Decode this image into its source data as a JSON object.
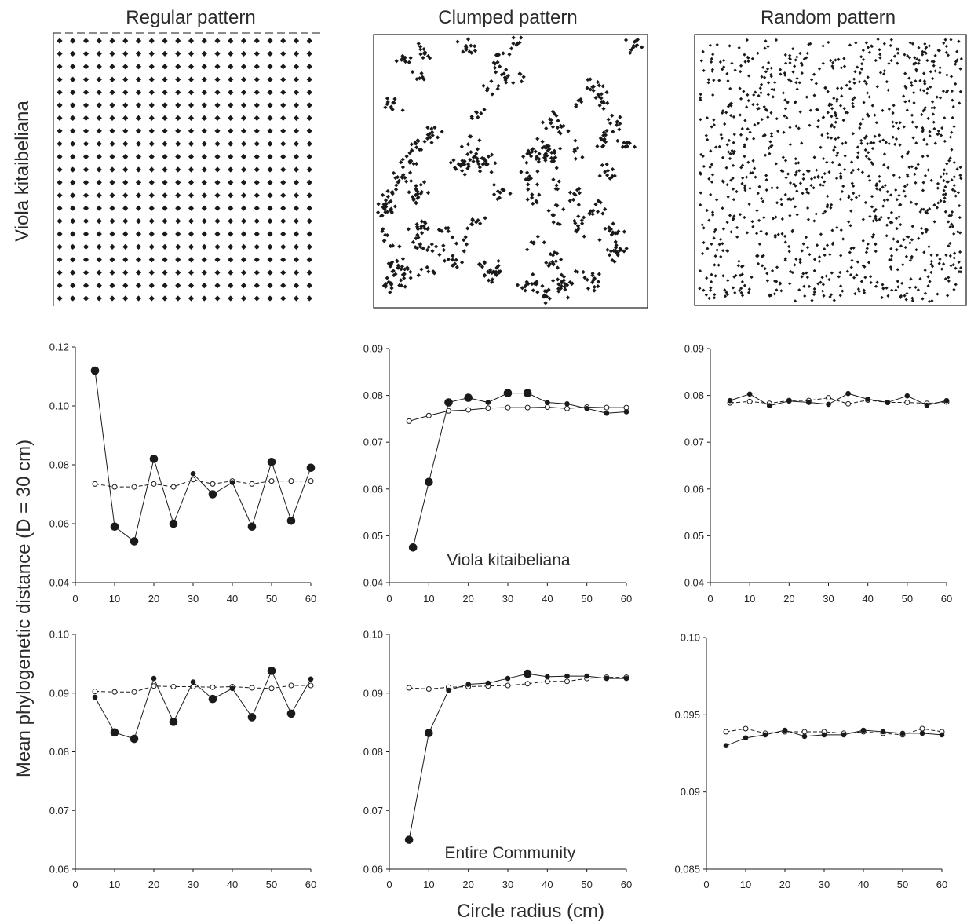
{
  "figure": {
    "col_titles": [
      "Regular pattern",
      "Clumped pattern",
      "Random pattern"
    ],
    "row_label_top": "Viola kitaibeliana",
    "ylabel": "Mean phylogenetic distance (D = 30 cm)",
    "xlabel": "Circle radius (cm)",
    "annotation_mid": "Viola kitaibeliana",
    "annotation_bottom": "Entire Community"
  },
  "style": {
    "line_color": "#1a1a1a",
    "observed_fill": "#1a1a1a",
    "null_fill": "#ffffff"
  },
  "chart_data": [
    {
      "id": "regular-viola",
      "type": "line",
      "xlabel": "Circle radius (cm)",
      "xlim": [
        0,
        60
      ],
      "ylim": [
        0.04,
        0.12
      ],
      "xticks": [
        0,
        10,
        20,
        30,
        40,
        50,
        60
      ],
      "yticks": [
        "0.04",
        "0.06",
        "0.08",
        "0.10",
        "0.12"
      ],
      "series": [
        {
          "marker": "filled",
          "x": [
            5,
            10,
            15,
            20,
            25,
            30,
            35,
            40,
            45,
            50,
            55,
            60
          ],
          "y": [
            0.112,
            0.059,
            0.054,
            0.082,
            0.06,
            0.077,
            0.07,
            0.074,
            0.059,
            0.081,
            0.061,
            0.079
          ],
          "sizes": [
            2,
            2,
            2,
            2,
            2,
            1,
            2,
            1,
            2,
            2,
            2,
            2
          ]
        },
        {
          "marker": "open",
          "line": "dashed",
          "x": [
            5,
            10,
            15,
            20,
            25,
            30,
            35,
            40,
            45,
            50,
            55,
            60
          ],
          "y": [
            0.0735,
            0.0725,
            0.0725,
            0.0735,
            0.0725,
            0.075,
            0.0735,
            0.0745,
            0.0735,
            0.0745,
            0.0745,
            0.0745
          ]
        }
      ]
    },
    {
      "id": "clumped-viola",
      "type": "line",
      "xlabel": "Circle radius (cm)",
      "xlim": [
        0,
        60
      ],
      "ylim": [
        0.04,
        0.09
      ],
      "xticks": [
        0,
        10,
        20,
        30,
        40,
        50,
        60
      ],
      "yticks": [
        "0.04",
        "0.05",
        "0.06",
        "0.07",
        "0.08",
        "0.09"
      ],
      "series": [
        {
          "marker": "filled",
          "x": [
            6,
            10,
            15,
            20,
            25,
            30,
            35,
            40,
            45,
            50,
            55,
            60
          ],
          "y": [
            0.0475,
            0.0615,
            0.0785,
            0.0795,
            0.0785,
            0.0805,
            0.0805,
            0.0785,
            0.0782,
            0.0772,
            0.0762,
            0.0765
          ],
          "sizes": [
            2,
            2,
            2,
            2,
            1,
            2,
            2,
            1,
            1,
            1,
            1,
            1
          ]
        },
        {
          "marker": "open",
          "x": [
            5,
            10,
            15,
            20,
            25,
            30,
            35,
            40,
            45,
            50,
            55,
            60
          ],
          "y": [
            0.0745,
            0.0757,
            0.0767,
            0.0769,
            0.0773,
            0.0774,
            0.0774,
            0.0775,
            0.0772,
            0.0775,
            0.0774,
            0.0774
          ]
        }
      ]
    },
    {
      "id": "random-viola",
      "type": "line",
      "xlabel": "Circle radius (cm)",
      "xlim": [
        0,
        60
      ],
      "ylim": [
        0.04,
        0.09
      ],
      "xticks": [
        0,
        10,
        20,
        30,
        40,
        50,
        60
      ],
      "yticks": [
        "0.04",
        "0.05",
        "0.06",
        "0.07",
        "0.08",
        "0.09"
      ],
      "series": [
        {
          "marker": "filled",
          "x": [
            5,
            10,
            15,
            20,
            25,
            30,
            35,
            40,
            45,
            50,
            55,
            60
          ],
          "y": [
            0.0789,
            0.0803,
            0.0778,
            0.0788,
            0.0785,
            0.0781,
            0.0804,
            0.0792,
            0.0785,
            0.0799,
            0.0779,
            0.0789
          ],
          "sizes": [
            1,
            1,
            1,
            1,
            1,
            1,
            1,
            1,
            1,
            1,
            1,
            1
          ]
        },
        {
          "marker": "open",
          "line": "dashed",
          "x": [
            5,
            10,
            15,
            20,
            25,
            30,
            35,
            40,
            45,
            50,
            55,
            60
          ],
          "y": [
            0.0784,
            0.0787,
            0.0783,
            0.0789,
            0.0789,
            0.0795,
            0.0782,
            0.079,
            0.0785,
            0.0785,
            0.0783,
            0.0786
          ]
        }
      ]
    },
    {
      "id": "regular-community",
      "type": "line",
      "xlabel": "Circle radius (cm)",
      "xlim": [
        0,
        60
      ],
      "ylim": [
        0.06,
        0.1
      ],
      "xticks": [
        0,
        10,
        20,
        30,
        40,
        50,
        60
      ],
      "yticks": [
        "0.06",
        "0.07",
        "0.08",
        "0.09",
        "0.10"
      ],
      "series": [
        {
          "marker": "filled",
          "x": [
            5,
            10,
            15,
            20,
            25,
            30,
            35,
            40,
            45,
            50,
            55,
            60
          ],
          "y": [
            0.0893,
            0.0833,
            0.0822,
            0.0925,
            0.0851,
            0.0919,
            0.089,
            0.0908,
            0.0859,
            0.0938,
            0.0865,
            0.0924
          ],
          "sizes": [
            1,
            2,
            2,
            1,
            2,
            1,
            2,
            1,
            2,
            2,
            2,
            1
          ]
        },
        {
          "marker": "open",
          "line": "dashed",
          "x": [
            5,
            10,
            15,
            20,
            25,
            30,
            35,
            40,
            45,
            50,
            55,
            60
          ],
          "y": [
            0.0903,
            0.0902,
            0.0902,
            0.0912,
            0.0911,
            0.0911,
            0.091,
            0.0911,
            0.0909,
            0.0908,
            0.0913,
            0.0913
          ]
        }
      ]
    },
    {
      "id": "clumped-community",
      "type": "line",
      "xlabel": "Circle radius (cm)",
      "xlim": [
        0,
        60
      ],
      "ylim": [
        0.06,
        0.1
      ],
      "xticks": [
        0,
        10,
        20,
        30,
        40,
        50,
        60
      ],
      "yticks": [
        "0.06",
        "0.07",
        "0.08",
        "0.09",
        "0.10"
      ],
      "series": [
        {
          "marker": "filled",
          "x": [
            5,
            10,
            15,
            20,
            25,
            30,
            35,
            40,
            45,
            50,
            55,
            60
          ],
          "y": [
            0.065,
            0.0832,
            0.0905,
            0.0915,
            0.0917,
            0.0925,
            0.0933,
            0.0928,
            0.0929,
            0.0929,
            0.0925,
            0.0925
          ],
          "sizes": [
            2,
            2,
            1,
            1,
            1,
            1,
            2,
            1,
            1,
            1,
            1,
            1
          ]
        },
        {
          "marker": "open",
          "line": "dashed",
          "x": [
            5,
            10,
            15,
            20,
            25,
            30,
            35,
            40,
            45,
            50,
            55,
            60
          ],
          "y": [
            0.0909,
            0.0907,
            0.091,
            0.0911,
            0.0912,
            0.0913,
            0.0916,
            0.092,
            0.092,
            0.0925,
            0.0927,
            0.0927
          ]
        }
      ]
    },
    {
      "id": "random-community",
      "type": "line",
      "xlabel": "Circle radius (cm)",
      "xlim": [
        0,
        60
      ],
      "ylim": [
        0.085,
        0.1
      ],
      "xticks": [
        0,
        10,
        20,
        30,
        40,
        50,
        60
      ],
      "yticks": [
        "0.085",
        "0.09",
        "0.095",
        "0.10"
      ],
      "series": [
        {
          "marker": "filled",
          "x": [
            5,
            10,
            15,
            20,
            25,
            30,
            35,
            40,
            45,
            50,
            55,
            60
          ],
          "y": [
            0.093,
            0.0935,
            0.0937,
            0.094,
            0.0936,
            0.0937,
            0.0937,
            0.094,
            0.0939,
            0.0938,
            0.0938,
            0.0937
          ],
          "sizes": [
            1,
            1,
            1,
            1,
            1,
            1,
            1,
            1,
            1,
            1,
            1,
            1
          ]
        },
        {
          "marker": "open",
          "line": "dashed",
          "x": [
            5,
            10,
            15,
            20,
            25,
            30,
            35,
            40,
            45,
            50,
            55,
            60
          ],
          "y": [
            0.0939,
            0.0941,
            0.0938,
            0.0939,
            0.0939,
            0.0939,
            0.0938,
            0.0939,
            0.0938,
            0.0937,
            0.0941,
            0.0939
          ]
        }
      ]
    }
  ]
}
